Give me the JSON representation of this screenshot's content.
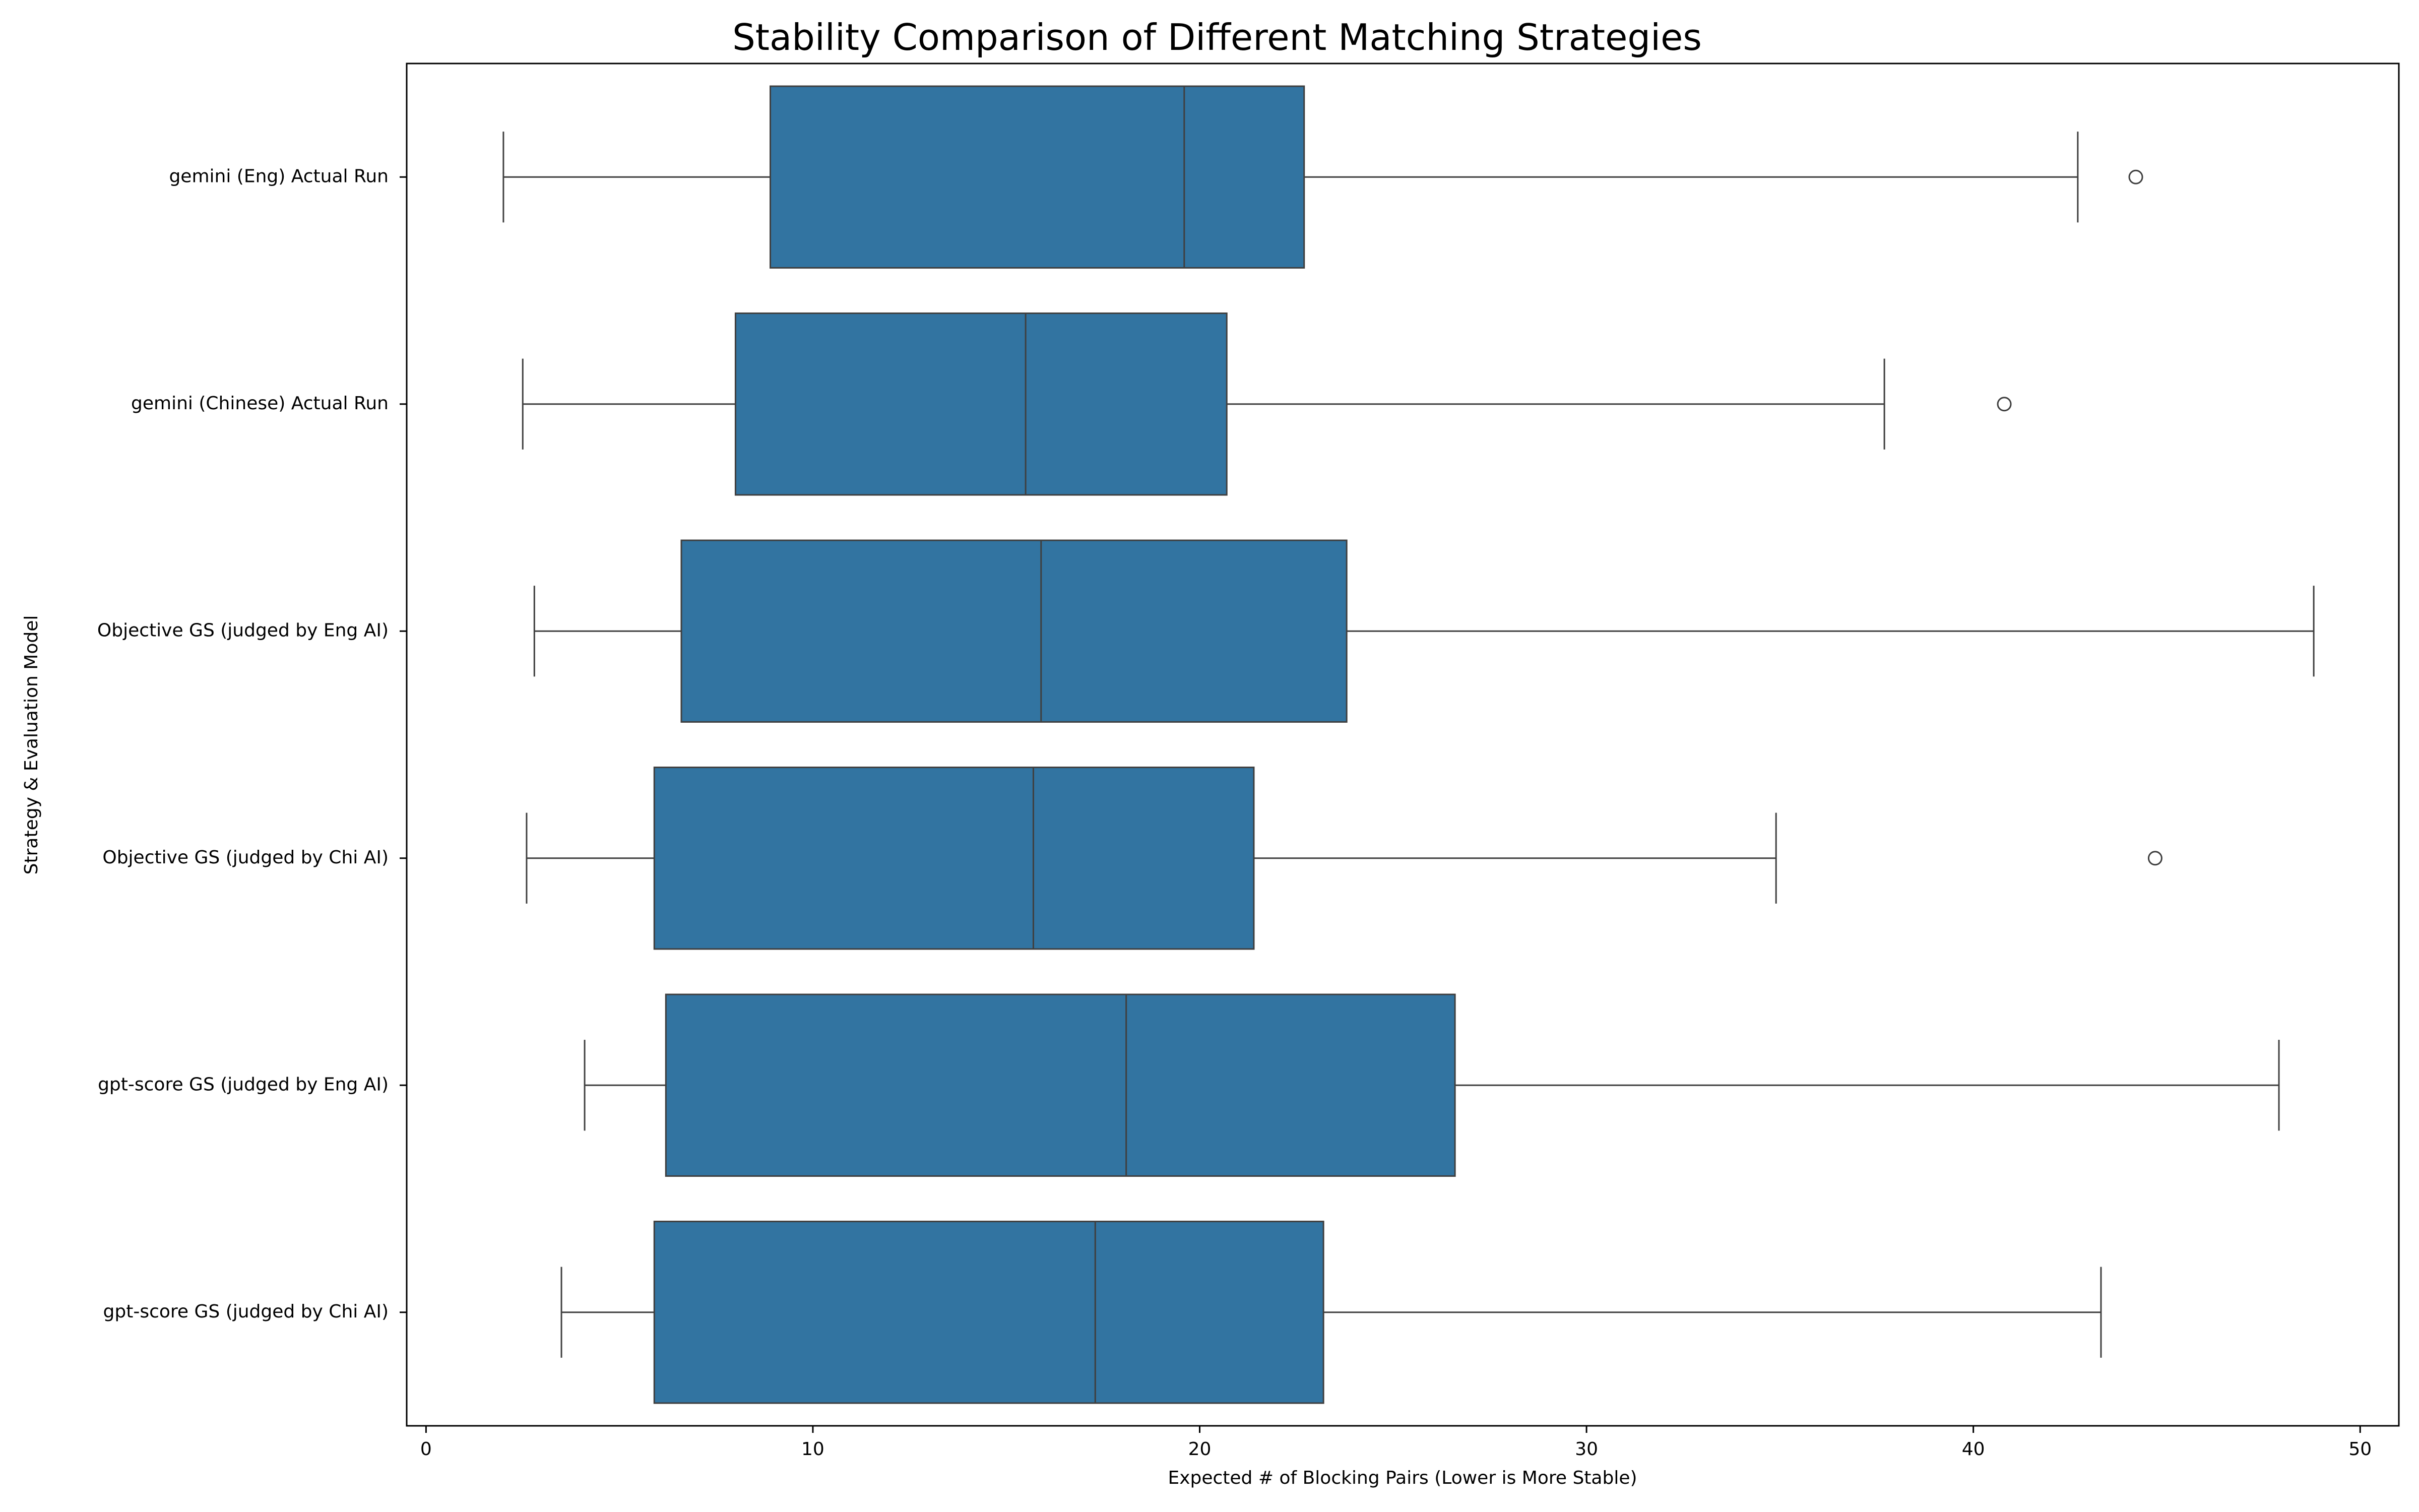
{
  "chart_data": {
    "type": "boxplot",
    "orientation": "horizontal",
    "title": "Stability Comparison of Different Matching Strategies",
    "xlabel": "Expected # of Blocking Pairs (Lower is More Stable)",
    "ylabel": "Strategy & Evaluation Model",
    "xlim": [
      -0.5,
      51
    ],
    "xticks": [
      0,
      10,
      20,
      30,
      40,
      50
    ],
    "grid": false,
    "box_color": "#3274a1",
    "line_color": "#3f3f3f",
    "categories": [
      "gemini (Eng) Actual Run",
      "gemini (Chinese) Actual Run",
      "Objective GS (judged by Eng AI)",
      "Objective GS (judged by Chi AI)",
      "gpt-score GS (judged by Eng AI)",
      "gpt-score GS (judged by Chi AI)"
    ],
    "boxes": [
      {
        "whisker_low": 2.0,
        "q1": 8.9,
        "median": 19.6,
        "q3": 22.7,
        "whisker_high": 42.7,
        "outliers": [
          44.2
        ]
      },
      {
        "whisker_low": 2.5,
        "q1": 8.0,
        "median": 15.5,
        "q3": 20.7,
        "whisker_high": 37.7,
        "outliers": [
          40.8
        ]
      },
      {
        "whisker_low": 2.8,
        "q1": 6.6,
        "median": 15.9,
        "q3": 23.8,
        "whisker_high": 48.8,
        "outliers": []
      },
      {
        "whisker_low": 2.6,
        "q1": 5.9,
        "median": 15.7,
        "q3": 21.4,
        "whisker_high": 34.9,
        "outliers": [
          44.7
        ]
      },
      {
        "whisker_low": 4.1,
        "q1": 6.2,
        "median": 18.1,
        "q3": 26.6,
        "whisker_high": 47.9,
        "outliers": []
      },
      {
        "whisker_low": 3.5,
        "q1": 5.9,
        "median": 17.3,
        "q3": 23.2,
        "whisker_high": 43.3,
        "outliers": []
      }
    ]
  }
}
